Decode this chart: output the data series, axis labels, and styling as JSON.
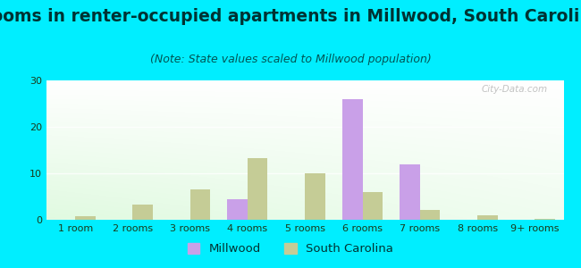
{
  "title": "Rooms in renter-occupied apartments in Millwood, South Carolina",
  "subtitle": "(Note: State values scaled to Millwood population)",
  "categories": [
    "1 room",
    "2 rooms",
    "3 rooms",
    "4 rooms",
    "5 rooms",
    "6 rooms",
    "7 rooms",
    "8 rooms",
    "9+ rooms"
  ],
  "millwood_values": [
    0,
    0,
    0,
    4.5,
    0,
    26,
    12,
    0,
    0
  ],
  "sc_values": [
    0.8,
    3.2,
    6.5,
    13.3,
    10,
    6,
    2.2,
    0.9,
    0.2
  ],
  "millwood_color": "#c9a0e8",
  "sc_color": "#c5cc96",
  "background_outer": "#00eeff",
  "ylim": [
    0,
    30
  ],
  "yticks": [
    0,
    10,
    20,
    30
  ],
  "bar_width": 0.35,
  "title_fontsize": 13.5,
  "subtitle_fontsize": 9,
  "tick_fontsize": 8,
  "legend_fontsize": 9.5,
  "watermark": "City-Data.com"
}
